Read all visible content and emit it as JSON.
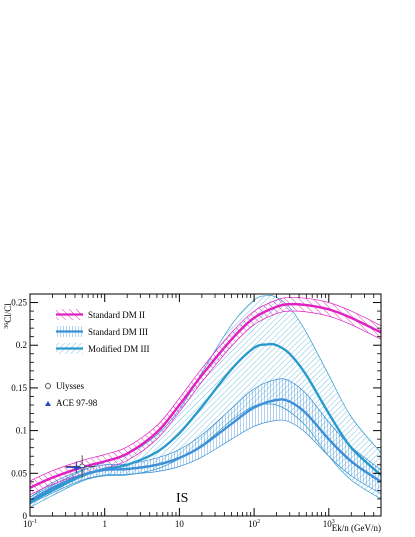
{
  "chart_data": {
    "type": "line",
    "title": "",
    "xlabel": "Ek/n (GeV/n)",
    "ylabel": "36Cl/Cl",
    "ylabel_parts": {
      "superscript": "36",
      "main": "Cl/Cl"
    },
    "xscale": "log",
    "xlim": [
      0.1,
      5000
    ],
    "ylim": [
      0,
      0.26
    ],
    "annotation": "IS",
    "x_tick_labels": [
      {
        "base": "10",
        "exp": "-1",
        "value": 0.1
      },
      {
        "base": "1",
        "exp": "",
        "value": 1
      },
      {
        "base": "10",
        "exp": "",
        "value": 10
      },
      {
        "base": "10",
        "exp": "2",
        "value": 100
      },
      {
        "base": "10",
        "exp": "3",
        "value": 1000
      }
    ],
    "y_ticks": [
      0,
      0.05,
      0.1,
      0.15,
      0.2,
      0.25
    ],
    "y_tick_labels": [
      "0",
      "0.05",
      "0.1",
      "0.15",
      "0.2",
      "0.25"
    ],
    "legend_placement": "top-left",
    "series": [
      {
        "name": "Standard DM II",
        "color": "#e020c0",
        "hatch": "diagonal-down",
        "x": [
          0.1,
          0.2,
          0.5,
          1,
          2,
          5,
          10,
          20,
          50,
          100,
          200,
          300,
          500,
          1000,
          2000,
          5000
        ],
        "y": [
          0.033,
          0.045,
          0.057,
          0.064,
          0.073,
          0.098,
          0.13,
          0.165,
          0.207,
          0.232,
          0.245,
          0.248,
          0.247,
          0.242,
          0.232,
          0.215
        ],
        "band": 0.008
      },
      {
        "name": "Standard DM III",
        "color": "#3c8fd8",
        "hatch": "vertical",
        "x": [
          0.1,
          0.2,
          0.5,
          1,
          2,
          5,
          10,
          20,
          50,
          100,
          200,
          300,
          500,
          1000,
          2000,
          5000
        ],
        "y": [
          0.018,
          0.033,
          0.048,
          0.054,
          0.055,
          0.06,
          0.068,
          0.082,
          0.108,
          0.127,
          0.136,
          0.134,
          0.12,
          0.09,
          0.064,
          0.04
        ],
        "band_low": [
          0.004,
          0.006,
          0.006,
          0.006,
          0.006,
          0.008,
          0.01,
          0.013,
          0.018,
          0.022,
          0.024,
          0.024,
          0.023,
          0.02,
          0.017,
          0.014
        ],
        "band_high": [
          0.004,
          0.006,
          0.006,
          0.006,
          0.006,
          0.008,
          0.01,
          0.013,
          0.018,
          0.022,
          0.024,
          0.024,
          0.023,
          0.02,
          0.017,
          0.014
        ]
      },
      {
        "name": "Modified DM III",
        "color": "#2a9acc",
        "hatch": "diagonal-up",
        "x": [
          0.1,
          0.2,
          0.5,
          1,
          2,
          5,
          10,
          20,
          50,
          100,
          150,
          200,
          300,
          500,
          1000,
          2000,
          5000
        ],
        "y": [
          0.016,
          0.03,
          0.047,
          0.055,
          0.06,
          0.075,
          0.097,
          0.128,
          0.172,
          0.197,
          0.201,
          0.2,
          0.19,
          0.165,
          0.12,
          0.08,
          0.048
        ],
        "band_low": [
          0.006,
          0.006,
          0.006,
          0.008,
          0.012,
          0.02,
          0.03,
          0.045,
          0.06,
          0.068,
          0.07,
          0.07,
          0.068,
          0.06,
          0.05,
          0.038,
          0.028
        ],
        "band_high": [
          0.006,
          0.006,
          0.006,
          0.008,
          0.012,
          0.02,
          0.028,
          0.04,
          0.052,
          0.056,
          0.057,
          0.056,
          0.054,
          0.05,
          0.045,
          0.036,
          0.026
        ]
      }
    ],
    "data_points": [
      {
        "name": "Ulysses",
        "marker": "open-circle",
        "color": "#555555",
        "x": 0.5,
        "y": 0.058,
        "yerr": 0.013,
        "xerr": [
          0.3,
          0.75
        ]
      },
      {
        "name": "ACE 97-98",
        "marker": "triangle",
        "color": "#2a44c0",
        "x": 0.42,
        "y": 0.057,
        "yerr": 0.007,
        "xerr": [
          0.3,
          0.55
        ]
      }
    ]
  }
}
